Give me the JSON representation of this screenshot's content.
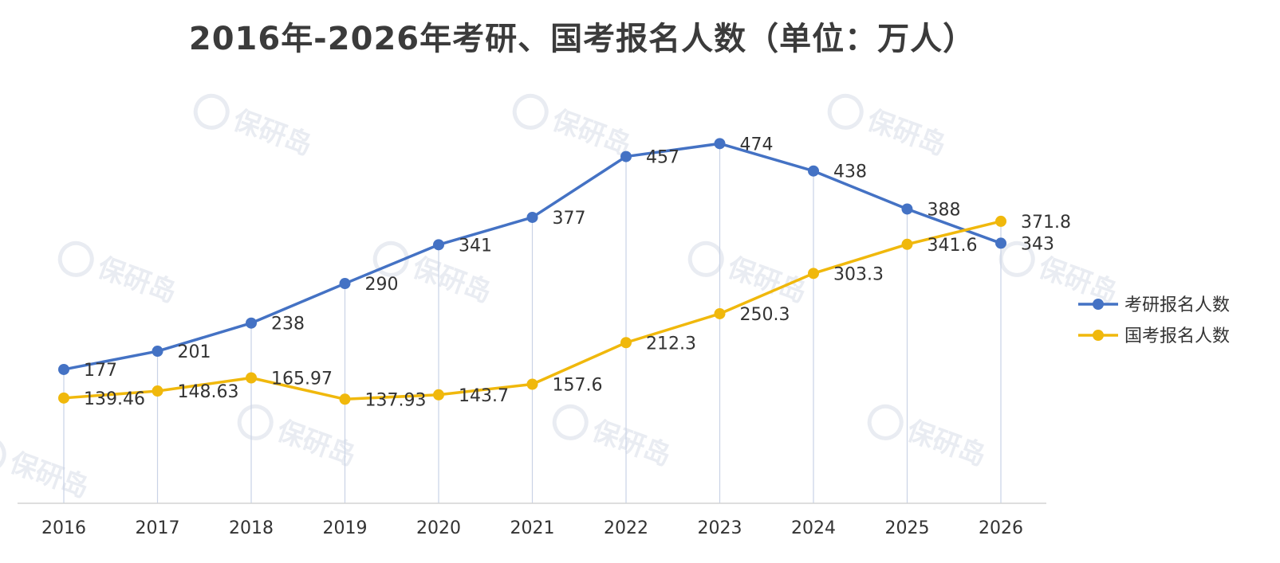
{
  "chart_data": {
    "type": "line",
    "title": "2016年-2026年考研、国考报名人数（单位：万人）",
    "categories": [
      "2016",
      "2017",
      "2018",
      "2019",
      "2020",
      "2021",
      "2022",
      "2023",
      "2024",
      "2025",
      "2026"
    ],
    "series": [
      {
        "name": "考研报名人数",
        "color": "#4472c4",
        "values": [
          177,
          201,
          238,
          290,
          341,
          377,
          457,
          474,
          438,
          388,
          343
        ],
        "labels": [
          "177",
          "201",
          "238",
          "290",
          "341",
          "377",
          "457",
          "474",
          "438",
          "388",
          "343"
        ]
      },
      {
        "name": "国考报名人数",
        "color": "#f0b80c",
        "values": [
          139.46,
          148.63,
          165.97,
          137.93,
          143.7,
          157.6,
          212.3,
          250.3,
          303.3,
          341.6,
          371.8
        ],
        "labels": [
          "139.46",
          "148.63",
          "165.97",
          "137.93",
          "143.7",
          "157.6",
          "212.3",
          "250.3",
          "303.3",
          "341.6",
          "371.8"
        ]
      }
    ],
    "ylim": [
      0,
      500
    ],
    "legend_position": "right",
    "grid": false,
    "watermark": "保研岛"
  }
}
